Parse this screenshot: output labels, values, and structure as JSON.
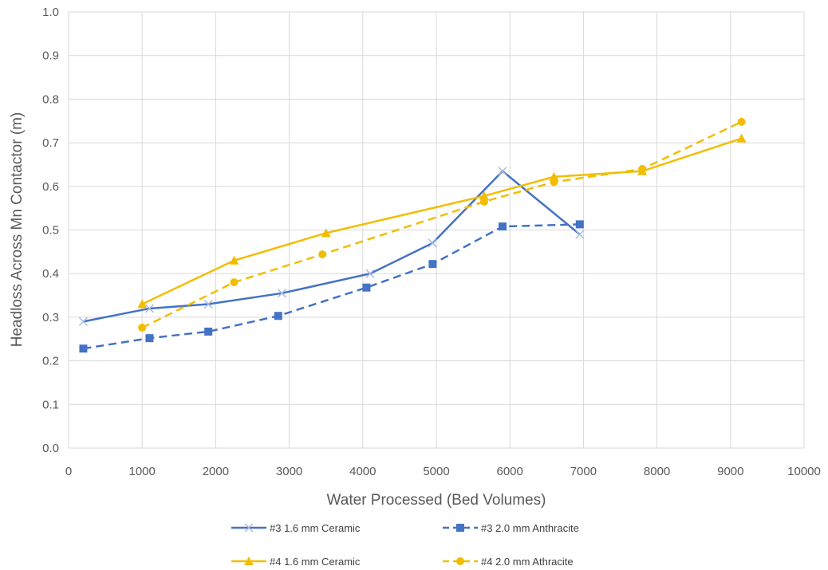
{
  "chart_data": {
    "type": "line",
    "xlabel": "Water Processed (Bed Volumes)",
    "ylabel": "Headloss Across Mn Contactor (m)",
    "xlim": [
      0,
      10000
    ],
    "ylim": [
      0.0,
      1.0
    ],
    "xticks": [
      "0",
      "1000",
      "2000",
      "3000",
      "4000",
      "5000",
      "6000",
      "7000",
      "8000",
      "9000",
      "10000"
    ],
    "yticks": [
      "0.0",
      "0.1",
      "0.2",
      "0.3",
      "0.4",
      "0.5",
      "0.6",
      "0.7",
      "0.8",
      "0.9",
      "1.0"
    ],
    "grid": true,
    "legend_position": "bottom",
    "series": [
      {
        "name": "#3 1.6 mm Ceramic",
        "color": "#4472C4",
        "dash": "solid",
        "marker": "x",
        "x": [
          200,
          1100,
          1900,
          2900,
          4100,
          4950,
          5900,
          6950
        ],
        "y": [
          0.29,
          0.32,
          0.33,
          0.355,
          0.4,
          0.47,
          0.635,
          0.49
        ]
      },
      {
        "name": "#3 2.0 mm Anthracite",
        "color": "#4472C4",
        "dash": "dashed",
        "marker": "square",
        "x": [
          200,
          1100,
          1900,
          2850,
          4050,
          4950,
          5900,
          6950
        ],
        "y": [
          0.228,
          0.252,
          0.267,
          0.303,
          0.368,
          0.422,
          0.508,
          0.513
        ]
      },
      {
        "name": "#4 1.6 mm Ceramic",
        "color": "#F2BD00",
        "dash": "solid",
        "marker": "triangle",
        "x": [
          1000,
          2250,
          3500,
          5650,
          6600,
          7800,
          9150
        ],
        "y": [
          0.33,
          0.43,
          0.493,
          0.578,
          0.622,
          0.635,
          0.71
        ]
      },
      {
        "name": "#4 2.0 mm Athracite",
        "color": "#F2BD00",
        "dash": "dashed",
        "marker": "circle",
        "x": [
          1000,
          2250,
          3450,
          5650,
          6600,
          7800,
          9150
        ],
        "y": [
          0.276,
          0.38,
          0.444,
          0.565,
          0.61,
          0.64,
          0.748
        ]
      }
    ]
  }
}
